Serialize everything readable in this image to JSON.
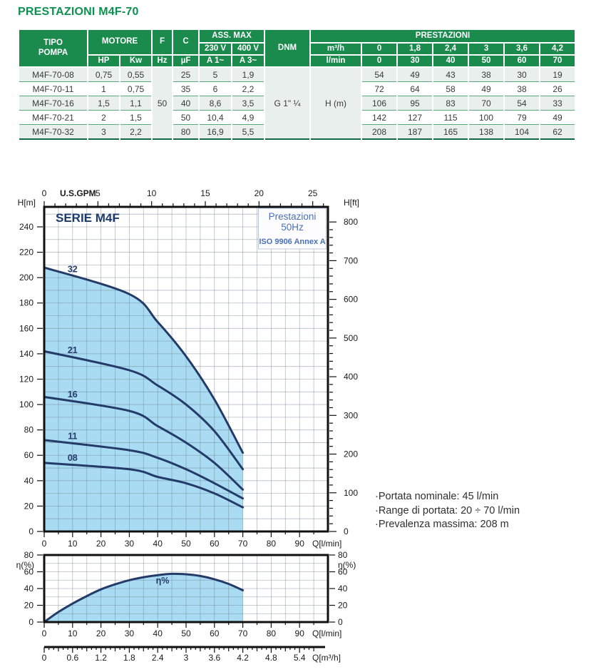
{
  "page": {
    "title": "PRESTAZIONI M4F-70"
  },
  "table": {
    "header": {
      "tipo_pompa": "TIPO\nPOMPA",
      "motore": "MOTORE",
      "hp": "HP",
      "kw": "Kw",
      "f": "F",
      "hz": "Hz",
      "c": "C",
      "uf": "µF",
      "ass_max": "ASS. MAX",
      "v230": "230 V",
      "v400": "400 V",
      "a1": "A 1~",
      "a3": "A 3~",
      "dnm": "DNM",
      "prestazioni": "PRESTAZIONI",
      "m3h_label": "m³/h",
      "lmin_label": "l/min",
      "m3h_values": [
        "0",
        "1,8",
        "2,4",
        "3",
        "3,6",
        "4,2"
      ],
      "lmin_values": [
        "0",
        "30",
        "40",
        "50",
        "60",
        "70"
      ]
    },
    "shared": {
      "hz_value": "50",
      "dnm_value": "G 1\" ¼",
      "h_label": "H (m)"
    },
    "rows": [
      {
        "tipo": "M4F-70-08",
        "hp": "0,75",
        "kw": "0,55",
        "uf": "25",
        "a1": "5",
        "a3": "1,9",
        "h": [
          "54",
          "49",
          "43",
          "38",
          "30",
          "19"
        ]
      },
      {
        "tipo": "M4F-70-11",
        "hp": "1",
        "kw": "0,75",
        "uf": "35",
        "a1": "6",
        "a3": "2,2",
        "h": [
          "72",
          "64",
          "58",
          "49",
          "38",
          "26"
        ]
      },
      {
        "tipo": "M4F-70-16",
        "hp": "1,5",
        "kw": "1,1",
        "uf": "40",
        "a1": "8,6",
        "a3": "3,5",
        "h": [
          "106",
          "95",
          "83",
          "70",
          "54",
          "33"
        ]
      },
      {
        "tipo": "M4F-70-21",
        "hp": "2",
        "kw": "1,5",
        "uf": "50",
        "a1": "10,4",
        "a3": "4,9",
        "h": [
          "142",
          "127",
          "115",
          "100",
          "79",
          "49"
        ]
      },
      {
        "tipo": "M4F-70-32",
        "hp": "3",
        "kw": "2,2",
        "uf": "80",
        "a1": "16,9",
        "a3": "5,5",
        "h": [
          "208",
          "187",
          "165",
          "138",
          "104",
          "62"
        ]
      }
    ]
  },
  "notes": {
    "lines": [
      "·Portata nominale: 45 l/min",
      "·Range di portata: 20 ÷ 70 l/min",
      "·Prevalenza massima: 208 m"
    ]
  },
  "chart_data": [
    {
      "type": "line",
      "title": "SERIE M4F",
      "info_box": [
        "Prestazioni",
        "50Hz",
        "ISO 9906 Annex A"
      ],
      "x": [
        0,
        30,
        40,
        50,
        60,
        70
      ],
      "series": [
        {
          "name": "32",
          "values": [
            208,
            187,
            165,
            138,
            104,
            62
          ]
        },
        {
          "name": "21",
          "values": [
            142,
            127,
            115,
            100,
            79,
            49
          ]
        },
        {
          "name": "16",
          "values": [
            106,
            95,
            83,
            70,
            54,
            33
          ]
        },
        {
          "name": "11",
          "values": [
            72,
            64,
            58,
            49,
            38,
            26
          ]
        },
        {
          "name": "08",
          "values": [
            54,
            49,
            43,
            38,
            30,
            19
          ]
        }
      ],
      "xlabel": "Q[l/min]",
      "ylabel_left": "H[m]",
      "ylabel_right": "H[ft]",
      "top_axis": {
        "label": "U.S.GPM",
        "major_ticks": [
          0,
          5,
          10,
          15,
          20,
          25
        ],
        "gpm_to_lmin": 3.78541
      },
      "xlim": [
        0,
        100
      ],
      "ylim": [
        0,
        256
      ],
      "x_ticks": [
        0,
        10,
        20,
        30,
        40,
        50,
        60,
        70,
        80,
        90
      ],
      "y_ticks_left": [
        0,
        20,
        40,
        60,
        80,
        100,
        120,
        140,
        160,
        180,
        200,
        220,
        240
      ],
      "y_ticks_right_ft": [
        0,
        100,
        200,
        300,
        400,
        500,
        600,
        700,
        800
      ],
      "ft_to_m": 0.3048,
      "grid": true,
      "fill_to_q": 70,
      "fill_color": "#a9dbf2",
      "line_color": "#243b69",
      "grid_color": "rgba(110,125,140,0.5)"
    },
    {
      "type": "area",
      "name": "η%",
      "x": [
        0,
        5,
        10,
        15,
        20,
        25,
        30,
        35,
        40,
        45,
        50,
        55,
        60,
        65,
        70
      ],
      "values": [
        0,
        12,
        22,
        31,
        39,
        45,
        50,
        53.5,
        56,
        57.5,
        57,
        55,
        51,
        45.5,
        38
      ],
      "ylabel": "η(%)",
      "xlabel": "Q[l/min]",
      "ylim": [
        0,
        80
      ],
      "y_ticks": [
        0,
        20,
        40,
        60,
        80
      ],
      "x_ticks": [
        0,
        10,
        20,
        30,
        40,
        50,
        60,
        70,
        80,
        90
      ],
      "secondary_axis": {
        "label": "Q[m³/h]",
        "tick_labels": [
          "0",
          "0.6",
          "1.2",
          "1.8",
          "2.4",
          "3",
          "3.6",
          "4.2",
          "4.8",
          "5.4"
        ],
        "m3h_to_lmin": 16.6667
      },
      "fill_to_q": 70,
      "fill_color": "#a9dbf2",
      "line_color": "#243b69"
    }
  ]
}
